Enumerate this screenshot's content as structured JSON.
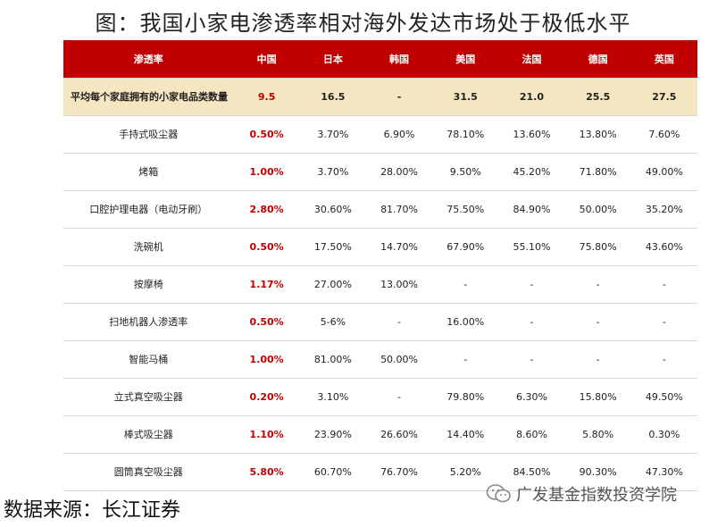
{
  "title": "图：我国小家电渗透率相对海外发达市场处于极低水平",
  "table": {
    "headers": [
      "渗透率",
      "中国",
      "日本",
      "韩国",
      "美国",
      "法国",
      "德国",
      "英国"
    ],
    "summary": {
      "label": "平均每个家庭拥有的小家电品类数量",
      "values": [
        "9.5",
        "16.5",
        "-",
        "31.5",
        "21.0",
        "25.5",
        "27.5"
      ]
    },
    "rows": [
      {
        "label": "手持式吸尘器",
        "values": [
          "0.50%",
          "3.70%",
          "6.90%",
          "78.10%",
          "13.60%",
          "13.80%",
          "7.60%"
        ]
      },
      {
        "label": "烤箱",
        "values": [
          "1.00%",
          "3.70%",
          "28.00%",
          "9.50%",
          "45.20%",
          "71.80%",
          "49.00%"
        ]
      },
      {
        "label": "口腔护理电器（电动牙刷）",
        "values": [
          "2.80%",
          "30.60%",
          "81.70%",
          "75.50%",
          "84.90%",
          "50.00%",
          "35.20%"
        ]
      },
      {
        "label": "洗碗机",
        "values": [
          "0.50%",
          "17.50%",
          "14.70%",
          "67.90%",
          "55.10%",
          "75.80%",
          "43.60%"
        ]
      },
      {
        "label": "按摩椅",
        "values": [
          "1.17%",
          "27.00%",
          "13.00%",
          "-",
          "-",
          "-",
          "-"
        ]
      },
      {
        "label": "扫地机器人渗透率",
        "values": [
          "0.50%",
          "5-6%",
          "-",
          "16.00%",
          "-",
          "-",
          "-"
        ]
      },
      {
        "label": "智能马桶",
        "values": [
          "1.00%",
          "81.00%",
          "50.00%",
          "-",
          "-",
          "-",
          "-"
        ]
      },
      {
        "label": "立式真空吸尘器",
        "values": [
          "0.20%",
          "3.10%",
          "-",
          "79.80%",
          "6.30%",
          "15.80%",
          "49.50%"
        ]
      },
      {
        "label": "棒式吸尘器",
        "values": [
          "1.10%",
          "23.90%",
          "26.60%",
          "14.40%",
          "8.60%",
          "5.80%",
          "0.30%"
        ]
      },
      {
        "label": "圆筒真空吸尘器",
        "values": [
          "5.80%",
          "60.70%",
          "76.70%",
          "5.20%",
          "84.50%",
          "90.30%",
          "47.30%"
        ]
      }
    ]
  },
  "source": "数据来源：长江证券",
  "watermark": {
    "text": "广发基金指数投资学院",
    "icon": "wechat-icon"
  }
}
